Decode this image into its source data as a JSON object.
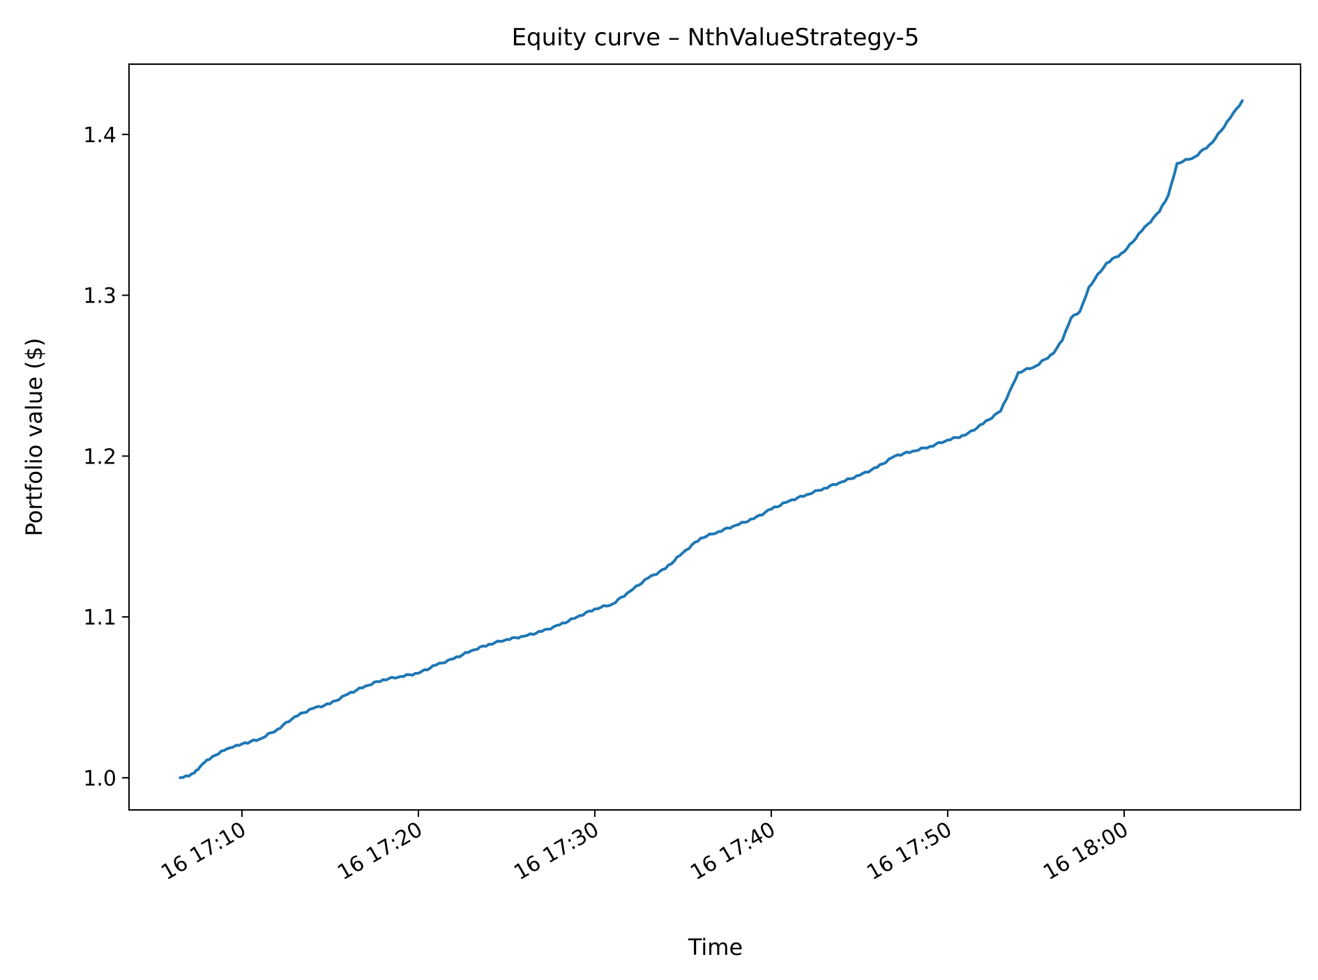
{
  "chart_data": {
    "type": "line",
    "title": "Equity curve – NthValueStrategy-5",
    "xlabel": "Time",
    "ylabel": "Portfolio value ($)",
    "x_axis_kind": "datetime",
    "x_tick_labels": [
      "16 17:10",
      "16 17:20",
      "16 17:30",
      "16 17:40",
      "16 17:50",
      "16 18:00"
    ],
    "y_tick_labels": [
      "1.0",
      "1.1",
      "1.2",
      "1.3",
      "1.4"
    ],
    "ylim": [
      0.98,
      1.4437
    ],
    "xlim": [
      "17:03.6",
      "18:10.0"
    ],
    "grid": false,
    "legend": "none",
    "line_color": "#1f77b4",
    "series": [
      {
        "x": [
          "17:06.5",
          "17:07.0",
          "17:07.3",
          "17:07.5",
          "17:07.8",
          "17:08.0",
          "17:08.5",
          "17:09.0",
          "17:09.5",
          "17:10.0",
          "17:11.0",
          "17:12.0",
          "17:13.0",
          "17:14.0",
          "17:15.0",
          "17:16.0",
          "17:17.0",
          "17:18.0",
          "17:19.0",
          "17:20.0",
          "17:21.0",
          "17:22.0",
          "17:23.0",
          "17:24.0",
          "17:25.0",
          "17:26.0",
          "17:27.0",
          "17:28.0",
          "17:29.0",
          "17:30.0",
          "17:31.0",
          "17:32.0",
          "17:33.0",
          "17:34.0",
          "17:35.0",
          "17:36.0",
          "17:37.0",
          "17:38.0",
          "17:39.0",
          "17:40.0",
          "17:41.0",
          "17:42.0",
          "17:43.0",
          "17:44.0",
          "17:45.0",
          "17:46.0",
          "17:47.0",
          "17:48.0",
          "17:49.0",
          "17:50.0",
          "17:51.0",
          "17:52.0",
          "17:53.0",
          "17:53.5",
          "17:54.0",
          "17:55.0",
          "17:56.0",
          "17:56.5",
          "17:57.0",
          "17:57.5",
          "17:58.0",
          "17:59.0",
          "18:00.0",
          "18:01.0",
          "18:02.0",
          "18:02.5",
          "18:03.0",
          "18:04.0",
          "18:05.0",
          "18:06.0",
          "18:06.7"
        ],
        "y": [
          1.0,
          1.001,
          1.003,
          1.005,
          1.009,
          1.011,
          1.014,
          1.017,
          1.019,
          1.021,
          1.024,
          1.03,
          1.038,
          1.043,
          1.046,
          1.052,
          1.057,
          1.061,
          1.063,
          1.065,
          1.07,
          1.074,
          1.079,
          1.083,
          1.086,
          1.088,
          1.091,
          1.095,
          1.1,
          1.105,
          1.108,
          1.116,
          1.124,
          1.13,
          1.14,
          1.149,
          1.153,
          1.157,
          1.161,
          1.167,
          1.172,
          1.176,
          1.18,
          1.184,
          1.188,
          1.193,
          1.2,
          1.203,
          1.206,
          1.21,
          1.213,
          1.22,
          1.228,
          1.24,
          1.252,
          1.256,
          1.264,
          1.272,
          1.286,
          1.29,
          1.305,
          1.32,
          1.327,
          1.34,
          1.352,
          1.362,
          1.382,
          1.386,
          1.395,
          1.41,
          1.421
        ]
      }
    ]
  }
}
